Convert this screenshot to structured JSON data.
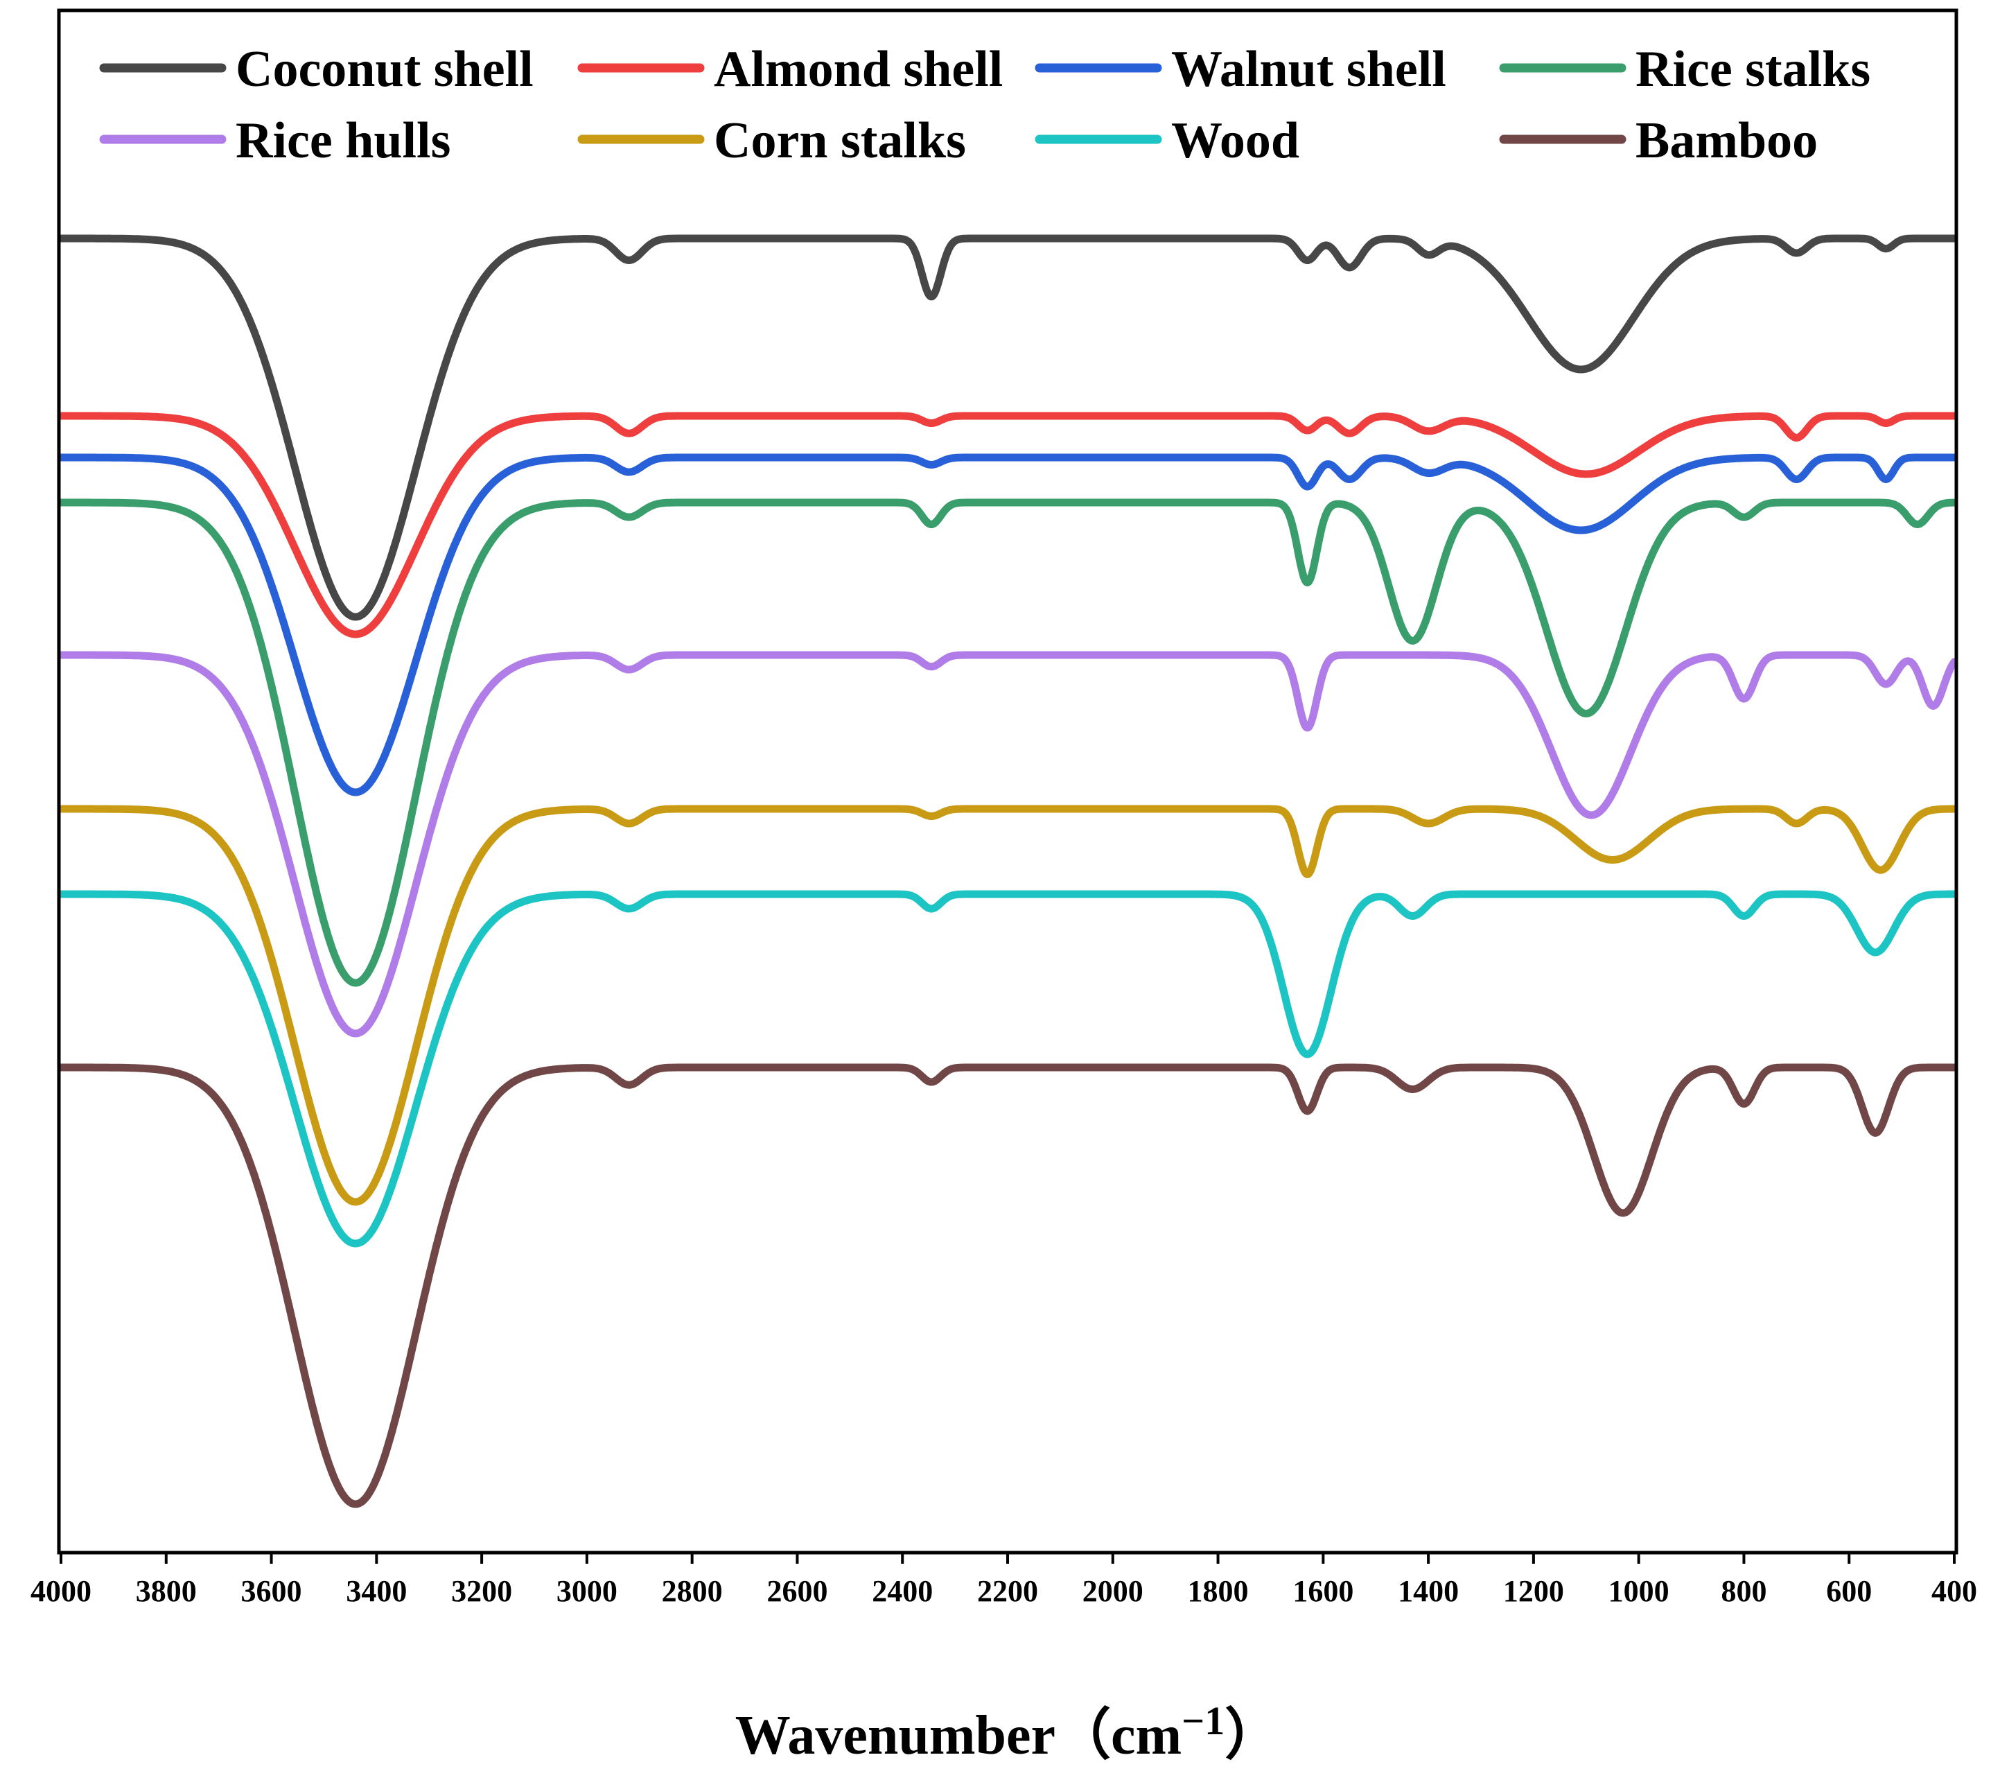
{
  "chart_data": {
    "type": "line",
    "title": "",
    "xlabel": {
      "text": "Wavenumber",
      "open_paren": "（",
      "unit_base": "cm",
      "unit_exponent": "−1",
      "close_paren": "）"
    },
    "ylabel": "",
    "xlim": [
      4000,
      400
    ],
    "x_reversed": true,
    "x_ticks": [
      "4000",
      "3800",
      "3600",
      "3400",
      "3200",
      "3000",
      "2800",
      "2600",
      "2400",
      "2200",
      "2000",
      "1800",
      "1600",
      "1400",
      "1200",
      "1000",
      "800",
      "600",
      "400"
    ],
    "y_axis_values_shown": false,
    "grid": false,
    "legend_position": "top",
    "series": [
      {
        "name": "Coconut shell",
        "color": "#474747",
        "baseline": 0,
        "peaks": [
          [
            3440,
            2.6,
            115
          ],
          [
            2920,
            0.15,
            25
          ],
          [
            2345,
            0.4,
            18
          ],
          [
            1630,
            0.15,
            18
          ],
          [
            1550,
            0.2,
            22
          ],
          [
            1400,
            0.1,
            20
          ],
          [
            1110,
            0.9,
            100
          ],
          [
            700,
            0.1,
            20
          ],
          [
            530,
            0.07,
            15
          ]
        ]
      },
      {
        "name": "Almond shell",
        "color": "#ee3e3e",
        "baseline": 0,
        "peaks": [
          [
            3440,
            1.5,
            115
          ],
          [
            2920,
            0.12,
            25
          ],
          [
            2345,
            0.05,
            18
          ],
          [
            1630,
            0.1,
            18
          ],
          [
            1550,
            0.12,
            22
          ],
          [
            1400,
            0.1,
            30
          ],
          [
            1100,
            0.4,
            100
          ],
          [
            700,
            0.15,
            20
          ],
          [
            530,
            0.05,
            15
          ]
        ]
      },
      {
        "name": "Walnut shell",
        "color": "#2860d8",
        "baseline": 0,
        "peaks": [
          [
            3440,
            2.3,
            115
          ],
          [
            2920,
            0.1,
            25
          ],
          [
            2345,
            0.05,
            18
          ],
          [
            1630,
            0.2,
            18
          ],
          [
            1550,
            0.15,
            22
          ],
          [
            1400,
            0.1,
            30
          ],
          [
            1110,
            0.5,
            100
          ],
          [
            700,
            0.15,
            20
          ],
          [
            530,
            0.15,
            15
          ]
        ]
      },
      {
        "name": "Rice stalks",
        "color": "#3a9e6c",
        "baseline": 0,
        "peaks": [
          [
            3440,
            3.3,
            115
          ],
          [
            2920,
            0.1,
            25
          ],
          [
            2345,
            0.15,
            18
          ],
          [
            1630,
            0.55,
            18
          ],
          [
            1430,
            0.95,
            45
          ],
          [
            1100,
            1.45,
            75
          ],
          [
            800,
            0.1,
            20
          ],
          [
            470,
            0.15,
            20
          ]
        ]
      },
      {
        "name": "Rice hulls",
        "color": "#b07ce8",
        "baseline": 0,
        "peaks": [
          [
            3440,
            2.6,
            115
          ],
          [
            2920,
            0.1,
            25
          ],
          [
            2345,
            0.08,
            18
          ],
          [
            1630,
            0.5,
            18
          ],
          [
            1090,
            1.1,
            75
          ],
          [
            800,
            0.3,
            20
          ],
          [
            530,
            0.2,
            20
          ],
          [
            440,
            0.35,
            20
          ]
        ]
      },
      {
        "name": "Corn stalks",
        "color": "#c99b14",
        "baseline": 0,
        "peaks": [
          [
            3440,
            2.7,
            115
          ],
          [
            2920,
            0.1,
            25
          ],
          [
            2345,
            0.05,
            18
          ],
          [
            1630,
            0.45,
            18
          ],
          [
            1400,
            0.1,
            30
          ],
          [
            1050,
            0.35,
            70
          ],
          [
            700,
            0.1,
            20
          ],
          [
            540,
            0.42,
            35
          ]
        ]
      },
      {
        "name": "Wood",
        "color": "#1cc4c4",
        "baseline": 0,
        "peaks": [
          [
            3440,
            2.4,
            115
          ],
          [
            2920,
            0.1,
            25
          ],
          [
            2345,
            0.1,
            18
          ],
          [
            1630,
            1.1,
            45
          ],
          [
            1430,
            0.15,
            25
          ],
          [
            800,
            0.15,
            20
          ],
          [
            550,
            0.4,
            35
          ]
        ]
      },
      {
        "name": "Bamboo",
        "color": "#714646",
        "baseline": 0,
        "peaks": [
          [
            3440,
            3.0,
            115
          ],
          [
            2920,
            0.12,
            25
          ],
          [
            2345,
            0.1,
            18
          ],
          [
            1630,
            0.3,
            18
          ],
          [
            1430,
            0.15,
            30
          ],
          [
            1030,
            1.0,
            55
          ],
          [
            800,
            0.25,
            20
          ],
          [
            550,
            0.45,
            25
          ]
        ]
      }
    ]
  }
}
